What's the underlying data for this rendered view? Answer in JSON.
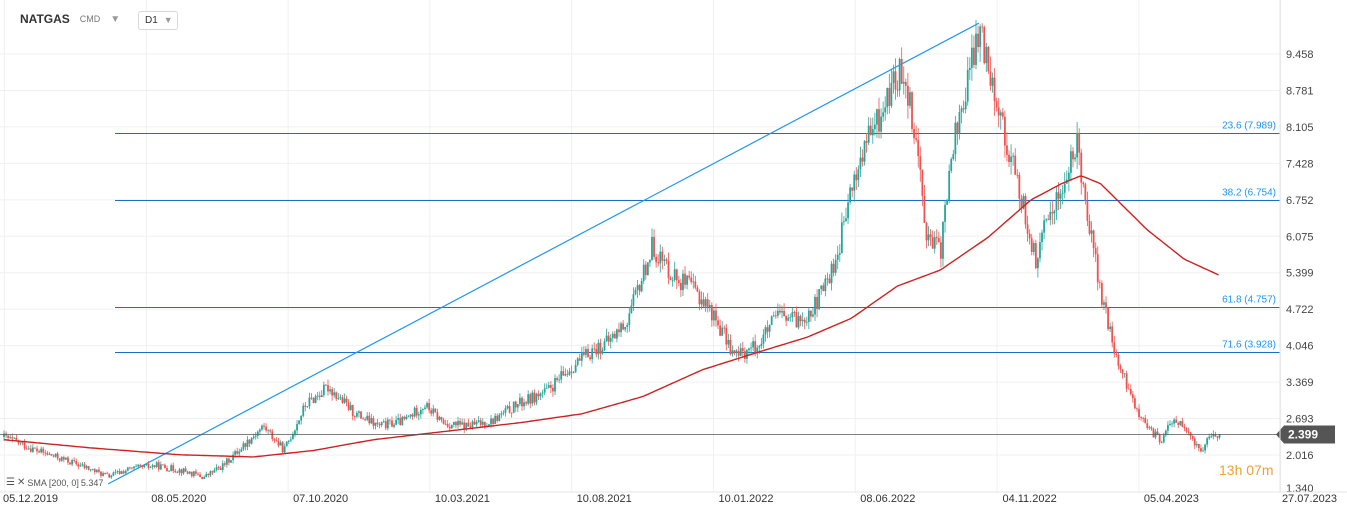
{
  "header": {
    "symbol": "NATGAS",
    "type": "CMD",
    "timeframe": "D1"
  },
  "sma": {
    "label": "SMA [200, 0]",
    "value": "5.347",
    "color": "#cc2222"
  },
  "price_label": "2.399",
  "countdown": {
    "hours": "13",
    "h": "h",
    "minutes": "07",
    "m": "m"
  },
  "colors": {
    "up": "#26a69a",
    "down": "#ef5350",
    "fib": "#2196f3",
    "sma": "#cc2222",
    "price_line": "#555555"
  },
  "chart_data": {
    "type": "candlestick",
    "y_ticks": [
      "9.458",
      "8.781",
      "8.105",
      "7.428",
      "6.752",
      "6.075",
      "5.399",
      "4.722",
      "4.046",
      "3.369",
      "2.693",
      "2.016",
      "1.340"
    ],
    "x_ticks": [
      "05.12.2019",
      "08.05.2020",
      "07.10.2020",
      "10.03.2021",
      "10.08.2021",
      "10.01.2022",
      "08.06.2022",
      "04.11.2022",
      "05.04.2023",
      "27.07.2023"
    ],
    "ylim": [
      1.34,
      9.458
    ],
    "fib_levels": [
      {
        "label": "23.6 (7.989)",
        "value": 7.989
      },
      {
        "label": "38.2 (6.754)",
        "value": 6.754
      },
      {
        "label": "61.8 (4.757)",
        "value": 4.757
      },
      {
        "label": "71.6 (3.928)",
        "value": 3.928
      }
    ],
    "trendline": {
      "from": [
        "2020-03-20",
        1.48
      ],
      "to": [
        "2022-08-23",
        10.03
      ]
    },
    "last_price": 2.399,
    "price_path": [
      [
        "2019-12-05",
        2.35
      ],
      [
        "2020-01-10",
        2.08
      ],
      [
        "2020-02-15",
        1.86
      ],
      [
        "2020-03-20",
        1.62
      ],
      [
        "2020-04-10",
        1.75
      ],
      [
        "2020-05-08",
        1.82
      ],
      [
        "2020-06-05",
        1.72
      ],
      [
        "2020-06-25",
        1.6
      ],
      [
        "2020-07-15",
        1.82
      ],
      [
        "2020-08-05",
        2.2
      ],
      [
        "2020-08-25",
        2.55
      ],
      [
        "2020-09-15",
        2.1
      ],
      [
        "2020-10-07",
        2.95
      ],
      [
        "2020-10-30",
        3.28
      ],
      [
        "2020-11-25",
        2.8
      ],
      [
        "2020-12-20",
        2.55
      ],
      [
        "2021-01-15",
        2.65
      ],
      [
        "2021-02-05",
        2.95
      ],
      [
        "2021-02-25",
        2.6
      ],
      [
        "2021-03-20",
        2.55
      ],
      [
        "2021-04-15",
        2.65
      ],
      [
        "2021-05-10",
        2.95
      ],
      [
        "2021-06-10",
        3.2
      ],
      [
        "2021-07-05",
        3.65
      ],
      [
        "2021-07-25",
        3.95
      ],
      [
        "2021-08-10",
        4.1
      ],
      [
        "2021-08-30",
        4.5
      ],
      [
        "2021-09-15",
        5.35
      ],
      [
        "2021-09-25",
        5.9
      ],
      [
        "2021-10-05",
        5.6
      ],
      [
        "2021-10-20",
        5.3
      ],
      [
        "2021-11-05",
        5.1
      ],
      [
        "2021-11-20",
        4.8
      ],
      [
        "2021-12-05",
        4.3
      ],
      [
        "2021-12-18",
        3.85
      ],
      [
        "2022-01-10",
        4.05
      ],
      [
        "2022-01-30",
        4.6
      ],
      [
        "2022-02-20",
        4.5
      ],
      [
        "2022-03-10",
        4.8
      ],
      [
        "2022-03-30",
        5.6
      ],
      [
        "2022-04-15",
        6.9
      ],
      [
        "2022-04-30",
        7.8
      ],
      [
        "2022-05-15",
        8.3
      ],
      [
        "2022-05-25",
        8.8
      ],
      [
        "2022-06-08",
        9.2
      ],
      [
        "2022-06-20",
        7.9
      ],
      [
        "2022-07-02",
        6.0
      ],
      [
        "2022-07-15",
        5.8
      ],
      [
        "2022-07-28",
        7.8
      ],
      [
        "2022-08-10",
        8.8
      ],
      [
        "2022-08-23",
        9.9
      ],
      [
        "2022-09-05",
        9.1
      ],
      [
        "2022-09-20",
        7.8
      ],
      [
        "2022-10-05",
        6.8
      ],
      [
        "2022-10-20",
        5.6
      ],
      [
        "2022-11-04",
        6.6
      ],
      [
        "2022-11-18",
        7.0
      ],
      [
        "2022-12-01",
        7.8
      ],
      [
        "2022-12-12",
        6.5
      ],
      [
        "2022-12-25",
        5.0
      ],
      [
        "2023-01-10",
        3.8
      ],
      [
        "2023-01-25",
        3.1
      ],
      [
        "2023-02-10",
        2.5
      ],
      [
        "2023-02-25",
        2.3
      ],
      [
        "2023-03-10",
        2.7
      ],
      [
        "2023-03-20",
        2.5
      ],
      [
        "2023-04-05",
        2.1
      ],
      [
        "2023-04-18",
        2.38
      ],
      [
        "2023-04-25",
        2.399
      ]
    ],
    "sma_path": [
      [
        "2019-12-05",
        2.3
      ],
      [
        "2020-03-01",
        2.15
      ],
      [
        "2020-06-01",
        2.02
      ],
      [
        "2020-08-15",
        1.98
      ],
      [
        "2020-10-15",
        2.1
      ],
      [
        "2020-12-15",
        2.3
      ],
      [
        "2021-03-10",
        2.48
      ],
      [
        "2021-05-15",
        2.62
      ],
      [
        "2021-07-15",
        2.78
      ],
      [
        "2021-09-15",
        3.1
      ],
      [
        "2021-11-15",
        3.6
      ],
      [
        "2022-01-15",
        3.95
      ],
      [
        "2022-03-01",
        4.2
      ],
      [
        "2022-04-15",
        4.55
      ],
      [
        "2022-06-01",
        5.15
      ],
      [
        "2022-07-15",
        5.45
      ],
      [
        "2022-09-01",
        6.05
      ],
      [
        "2022-10-15",
        6.75
      ],
      [
        "2022-11-15",
        7.05
      ],
      [
        "2022-12-05",
        7.2
      ],
      [
        "2022-12-25",
        7.05
      ],
      [
        "2023-02-10",
        6.2
      ],
      [
        "2023-03-20",
        5.65
      ],
      [
        "2023-04-25",
        5.35
      ]
    ]
  }
}
